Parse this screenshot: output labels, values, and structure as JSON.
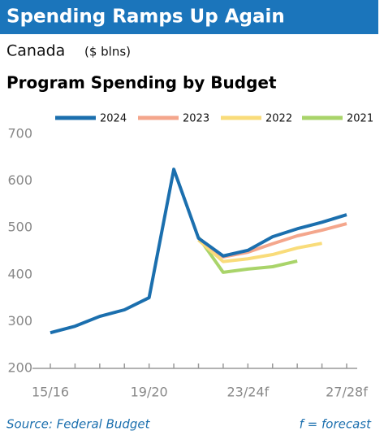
{
  "chart_data": {
    "type": "line",
    "title": "Spending Ramps Up Again",
    "region": "Canada",
    "unit": "($ blns)",
    "subtitle": "Program Spending by Budget",
    "source": "Source: Federal Budget",
    "note": "f = forecast",
    "categories": [
      "15/16",
      null,
      null,
      null,
      "19/20",
      null,
      null,
      null,
      "23/24f",
      null,
      null,
      null,
      "27/28f"
    ],
    "series": [
      {
        "name": "2024",
        "color": "#1b6fae",
        "values": [
          276,
          290,
          311,
          325,
          351,
          625,
          478,
          440,
          452,
          481,
          498,
          512,
          528
        ]
      },
      {
        "name": "2023",
        "color": "#f4a68c",
        "values": [
          null,
          null,
          null,
          null,
          null,
          null,
          478,
          438,
          448,
          466,
          483,
          495,
          509
        ]
      },
      {
        "name": "2022",
        "color": "#f9dc7a",
        "values": [
          null,
          null,
          null,
          null,
          null,
          null,
          474,
          428,
          434,
          443,
          457,
          467,
          null
        ]
      },
      {
        "name": "2021",
        "color": "#a9d46a",
        "values": [
          null,
          null,
          null,
          null,
          null,
          null,
          480,
          405,
          412,
          417,
          429,
          null,
          null
        ]
      }
    ],
    "ylim": [
      200,
      700
    ],
    "yticks": [
      200,
      300,
      400,
      500,
      600,
      700
    ]
  }
}
